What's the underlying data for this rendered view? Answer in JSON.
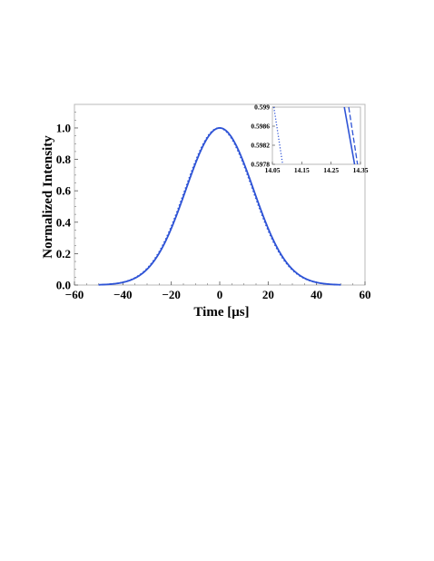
{
  "chart_data": [
    {
      "type": "line",
      "xlabel": "Time [μs]",
      "ylabel": "Normalized Intensity",
      "xlim": [
        -60,
        60
      ],
      "ylim": [
        0,
        1.15
      ],
      "x_ticks": [
        "−60",
        "−40",
        "−20",
        "0",
        "20",
        "40",
        "60"
      ],
      "y_ticks": [
        "0.0",
        "0.2",
        "0.4",
        "0.6",
        "0.8",
        "1.0"
      ],
      "grid": false,
      "x_range_plotted": [
        -50,
        50
      ],
      "series": [
        {
          "style": "solid",
          "color": "#2f54d6",
          "shape": "gaussian",
          "center": 0,
          "sigma": 14.0,
          "peak": 1.0
        },
        {
          "style": "dashed",
          "color": "#2f54d6",
          "shape": "gaussian",
          "center": 0,
          "sigma": 14.0,
          "peak": 1.0
        },
        {
          "style": "dotted",
          "color": "#2f54d6",
          "shape": "gaussian",
          "center": -0.4,
          "sigma": 14.0,
          "peak": 1.0
        }
      ]
    },
    {
      "type": "line",
      "role": "inset",
      "xlim": [
        14.05,
        14.35
      ],
      "ylim": [
        0.5978,
        0.599
      ],
      "x_ticks": [
        "14.05",
        "14.15",
        "14.25",
        "14.35"
      ],
      "y_ticks": [
        "0.599",
        "0.5986",
        "0.5982",
        "0.5978"
      ],
      "series": [
        {
          "style": "dotted",
          "color": "#2f54d6",
          "points": [
            [
              14.055,
              0.599
            ],
            [
              14.085,
              0.5978
            ]
          ]
        },
        {
          "style": "dashed",
          "color": "#2f54d6",
          "points": [
            [
              14.31,
              0.599
            ],
            [
              14.34,
              0.5978
            ]
          ]
        },
        {
          "style": "solid",
          "color": "#2f54d6",
          "points": [
            [
              14.295,
              0.599
            ],
            [
              14.33,
              0.5978
            ]
          ]
        }
      ]
    }
  ]
}
